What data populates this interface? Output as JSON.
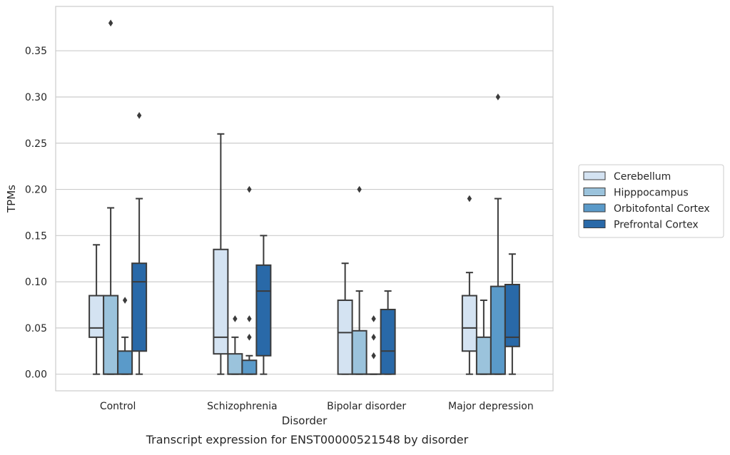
{
  "chart_data": {
    "type": "box",
    "title": "Transcript expression for ENST00000521548 by disorder",
    "xlabel": "Disorder",
    "ylabel": "TPMs",
    "ylim": [
      -0.018,
      0.398
    ],
    "yticks": [
      0.0,
      0.05,
      0.1,
      0.15,
      0.2,
      0.25,
      0.3,
      0.35
    ],
    "ytick_labels": [
      "0.00",
      "0.05",
      "0.10",
      "0.15",
      "0.20",
      "0.25",
      "0.30",
      "0.35"
    ],
    "categories": [
      "Control",
      "Schizophrenia",
      "Bipolar disorder",
      "Major depression"
    ],
    "grid": true,
    "legend_position": "right",
    "series": [
      {
        "name": "Cerebellum",
        "color": "#d4e3f2",
        "boxes": [
          {
            "whisker_low": 0.0,
            "q1": 0.04,
            "median": 0.05,
            "q3": 0.085,
            "whisker_high": 0.14,
            "outliers": []
          },
          {
            "whisker_low": 0.0,
            "q1": 0.022,
            "median": 0.04,
            "q3": 0.135,
            "whisker_high": 0.26,
            "outliers": []
          },
          {
            "whisker_low": 0.0,
            "q1": 0.0,
            "median": 0.045,
            "q3": 0.08,
            "whisker_high": 0.12,
            "outliers": []
          },
          {
            "whisker_low": 0.0,
            "q1": 0.025,
            "median": 0.05,
            "q3": 0.085,
            "whisker_high": 0.11,
            "outliers": [
              0.19
            ]
          }
        ]
      },
      {
        "name": "Hipppocampus",
        "color": "#9bc3dc",
        "boxes": [
          {
            "whisker_low": 0.0,
            "q1": 0.0,
            "median": 0.0,
            "q3": 0.085,
            "whisker_high": 0.18,
            "outliers": [
              0.38
            ]
          },
          {
            "whisker_low": 0.0,
            "q1": 0.0,
            "median": 0.0,
            "q3": 0.022,
            "whisker_high": 0.04,
            "outliers": [
              0.06
            ]
          },
          {
            "whisker_low": 0.0,
            "q1": 0.0,
            "median": 0.0,
            "q3": 0.047,
            "whisker_high": 0.09,
            "outliers": [
              0.2
            ]
          },
          {
            "whisker_low": 0.0,
            "q1": 0.0,
            "median": 0.0,
            "q3": 0.04,
            "whisker_high": 0.08,
            "outliers": []
          }
        ]
      },
      {
        "name": "Orbitofontal Cortex",
        "color": "#5a9ac9",
        "boxes": [
          {
            "whisker_low": 0.0,
            "q1": 0.0,
            "median": 0.0,
            "q3": 0.025,
            "whisker_high": 0.04,
            "outliers": [
              0.08
            ]
          },
          {
            "whisker_low": 0.0,
            "q1": 0.0,
            "median": 0.0,
            "q3": 0.015,
            "whisker_high": 0.02,
            "outliers": [
              0.04,
              0.06,
              0.2
            ]
          },
          {
            "whisker_low": 0.0,
            "q1": 0.0,
            "median": 0.0,
            "q3": 0.0,
            "whisker_high": 0.0,
            "outliers": [
              0.02,
              0.04,
              0.06
            ]
          },
          {
            "whisker_low": 0.0,
            "q1": 0.0,
            "median": 0.0,
            "q3": 0.095,
            "whisker_high": 0.19,
            "outliers": [
              0.3
            ]
          }
        ]
      },
      {
        "name": "Prefrontal Cortex",
        "color": "#2969a8",
        "boxes": [
          {
            "whisker_low": 0.0,
            "q1": 0.025,
            "median": 0.1,
            "q3": 0.12,
            "whisker_high": 0.19,
            "outliers": [
              0.28
            ]
          },
          {
            "whisker_low": 0.0,
            "q1": 0.02,
            "median": 0.09,
            "q3": 0.118,
            "whisker_high": 0.15,
            "outliers": []
          },
          {
            "whisker_low": 0.0,
            "q1": 0.0,
            "median": 0.025,
            "q3": 0.07,
            "whisker_high": 0.09,
            "outliers": []
          },
          {
            "whisker_low": 0.0,
            "q1": 0.03,
            "median": 0.04,
            "q3": 0.097,
            "whisker_high": 0.13,
            "outliers": []
          }
        ]
      }
    ]
  }
}
